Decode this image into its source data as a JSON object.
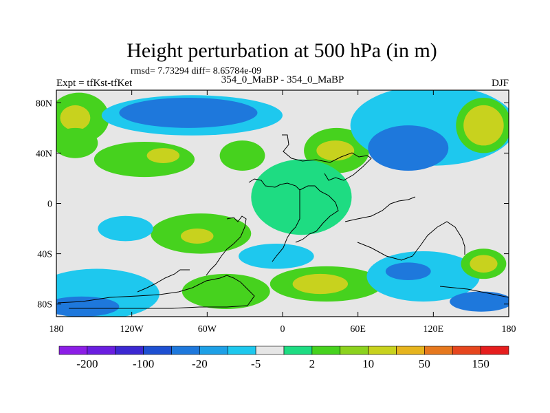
{
  "chart_data": {
    "type": "heatmap",
    "title": "Height perturbation at 500 hPa (in m)",
    "stats_line": "rmsd= 7.73294 diff= 8.65784e-09",
    "left_label": "Expt = tfKst-tfKet",
    "center_label": "354_0_MaBP - 354_0_MaBP",
    "right_label": "DJF",
    "x_axis": {
      "range": [
        -180,
        180
      ],
      "ticks": [
        {
          "value": -180,
          "label": "180"
        },
        {
          "value": -120,
          "label": "120W"
        },
        {
          "value": -60,
          "label": "60W"
        },
        {
          "value": 0,
          "label": "0"
        },
        {
          "value": 60,
          "label": "60E"
        },
        {
          "value": 120,
          "label": "120E"
        },
        {
          "value": 180,
          "label": "180"
        }
      ]
    },
    "y_axis": {
      "range": [
        -90,
        90
      ],
      "ticks": [
        {
          "value": 80,
          "label": "80N"
        },
        {
          "value": 40,
          "label": "40N"
        },
        {
          "value": 0,
          "label": "0"
        },
        {
          "value": -40,
          "label": "40S"
        },
        {
          "value": -80,
          "label": "80S"
        }
      ]
    },
    "colorbar": {
      "colors": [
        "#8c1ee6",
        "#6a1ee0",
        "#3c28d2",
        "#1e50d2",
        "#1e78dc",
        "#1ea0e6",
        "#1ec8ee",
        "#e6e6e6",
        "#1edc82",
        "#46d21e",
        "#8cd21e",
        "#c8d21e",
        "#e6b41e",
        "#e6781e",
        "#e6461e",
        "#e61e1e"
      ],
      "labels": [
        "-200",
        "-100",
        "-20",
        "-5",
        "2",
        "10",
        "50",
        "150"
      ]
    },
    "field_regions": [
      {
        "lon": -162,
        "lat": 68,
        "rlon": 24,
        "rlat": 20,
        "level": 10
      },
      {
        "lon": -165,
        "lat": 68,
        "rlon": 12,
        "rlat": 10,
        "level": 50
      },
      {
        "lon": -165,
        "lat": 48,
        "rlon": 18,
        "rlat": 12,
        "level": 10
      },
      {
        "lon": -72,
        "lat": 70,
        "rlon": 72,
        "rlat": 16,
        "level": -5
      },
      {
        "lon": -75,
        "lat": 72,
        "rlon": 55,
        "rlat": 12,
        "level": -20
      },
      {
        "lon": -110,
        "lat": 35,
        "rlon": 40,
        "rlat": 14,
        "level": 10
      },
      {
        "lon": -95,
        "lat": 38,
        "rlon": 13,
        "rlat": 6,
        "level": 50
      },
      {
        "lon": -32,
        "lat": 38,
        "rlon": 18,
        "rlat": 12,
        "level": 10
      },
      {
        "lon": 43,
        "lat": 42,
        "rlon": 26,
        "rlat": 18,
        "level": 10
      },
      {
        "lon": 42,
        "lat": 42,
        "rlon": 15,
        "rlat": 8,
        "level": 50
      },
      {
        "lon": 120,
        "lat": 62,
        "rlon": 66,
        "rlat": 32,
        "level": -5
      },
      {
        "lon": 100,
        "lat": 44,
        "rlon": 32,
        "rlat": 18,
        "level": -20
      },
      {
        "lon": 160,
        "lat": 62,
        "rlon": 22,
        "rlat": 22,
        "level": 10
      },
      {
        "lon": 160,
        "lat": 62,
        "rlon": 16,
        "rlat": 16,
        "level": 50
      },
      {
        "lon": 15,
        "lat": 5,
        "rlon": 40,
        "rlat": 30,
        "level": 2
      },
      {
        "lon": -65,
        "lat": -24,
        "rlon": 40,
        "rlat": 16,
        "level": 10
      },
      {
        "lon": -68,
        "lat": -26,
        "rlon": 13,
        "rlat": 6,
        "level": 50
      },
      {
        "lon": -125,
        "lat": -20,
        "rlon": 22,
        "rlat": 10,
        "level": -5
      },
      {
        "lon": -148,
        "lat": -72,
        "rlon": 50,
        "rlat": 20,
        "level": -5
      },
      {
        "lon": -160,
        "lat": -82,
        "rlon": 30,
        "rlat": 8,
        "level": -20
      },
      {
        "lon": -5,
        "lat": -42,
        "rlon": 30,
        "rlat": 10,
        "level": -5
      },
      {
        "lon": 35,
        "lat": -64,
        "rlon": 45,
        "rlat": 14,
        "level": 10
      },
      {
        "lon": 30,
        "lat": -64,
        "rlon": 22,
        "rlat": 8,
        "level": 50
      },
      {
        "lon": -45,
        "lat": -70,
        "rlon": 35,
        "rlat": 14,
        "level": 10
      },
      {
        "lon": 112,
        "lat": -58,
        "rlon": 45,
        "rlat": 20,
        "level": -5
      },
      {
        "lon": 100,
        "lat": -54,
        "rlon": 18,
        "rlat": 7,
        "level": -20
      },
      {
        "lon": 160,
        "lat": -48,
        "rlon": 18,
        "rlat": 12,
        "level": 10
      },
      {
        "lon": 160,
        "lat": -48,
        "rlon": 11,
        "rlat": 7,
        "level": 50
      },
      {
        "lon": 158,
        "lat": -78,
        "rlon": 25,
        "rlat": 8,
        "level": -20
      }
    ]
  }
}
